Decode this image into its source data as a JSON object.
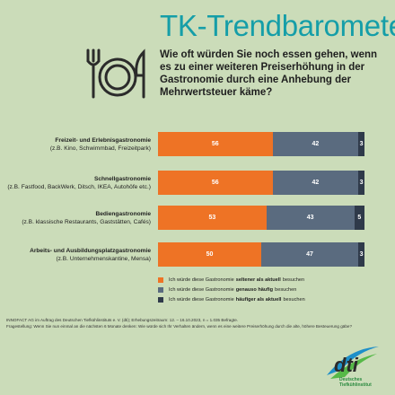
{
  "title": "TK-Trendbarometer",
  "question": "Wie oft würden Sie noch essen gehen, wenn es zu einer weiteren Preiserhöhung in der Gastronomie durch eine Anhebung der Mehrwertsteuer käme?",
  "colors": {
    "orange": "#ee7325",
    "slate": "#5a6b7f",
    "dark": "#2f3a4a",
    "teal": "#159ea8",
    "background": "#cbdcb9"
  },
  "icon": "plate-fork-knife-icon",
  "rows": [
    {
      "label": "Freizeit- und Erlebnisgastronomie",
      "sub": "(z.B. Kino, Schwimmbad, Freizeitpark)"
    },
    {
      "label": "Schnellgastronomie",
      "sub": "(z.B. Fastfood, BackWerk, Ditsch, IKEA, Autohöfe etc.)"
    },
    {
      "label": "Bediengastronomie",
      "sub": "(z.B. klassische Restaurants, Gaststätten, Cafés)"
    },
    {
      "label": "Arbeits- und Ausbildungsplatzgastronomie",
      "sub": "(z.B. Unternehmenskantine, Mensa)"
    }
  ],
  "chart_data": {
    "type": "bar",
    "orientation": "horizontal",
    "stacked": true,
    "categories": [
      "Freizeit- und Erlebnisgastronomie",
      "Schnellgastronomie",
      "Bediengastronomie",
      "Arbeits- und Ausbildungsplatzgastronomie"
    ],
    "series": [
      {
        "name": "seltener als aktuell besuchen",
        "values": [
          56,
          56,
          53,
          50
        ],
        "color": "#ee7325"
      },
      {
        "name": "genauso häufig besuchen",
        "values": [
          42,
          42,
          43,
          47
        ],
        "color": "#5a6b7f"
      },
      {
        "name": "häufiger als aktuell besuchen",
        "values": [
          3,
          3,
          5,
          3
        ],
        "color": "#2f3a4a"
      }
    ],
    "legend_position": "bottom"
  },
  "legend": [
    {
      "pre": "Ich würde diese Gastronomie",
      "bold": "seltener als aktuell",
      "post": "besuchen",
      "color": "#ee7325"
    },
    {
      "pre": "Ich würde diese Gastronomie",
      "bold": "genauso häufig",
      "post": "besuchen",
      "color": "#5a6b7f"
    },
    {
      "pre": "Ich würde diese Gastronomie",
      "bold": "häufiger als aktuell",
      "post": "besuchen",
      "color": "#2f3a4a"
    }
  ],
  "footnote1": "INNOFACT AG im Auftrag des Deutschen Tiefkühlinstituts e. V. (dti); Erhebungszeitraum: 12. – 16.10.2023, n = 1.035 Befragte.",
  "footnote2": "Fragestellung: Wenn Sie nun einmal an die nächsten 6 Monate denken: Wie würde sich Ihr Verhalten ändern, wenn es eine weitere Preiserhöhung durch die alte, höhere Besteuerung gäbe?",
  "logo": {
    "mark": "dti",
    "line1": "Deutsches",
    "line2": "Tiefkühlinstitut"
  }
}
